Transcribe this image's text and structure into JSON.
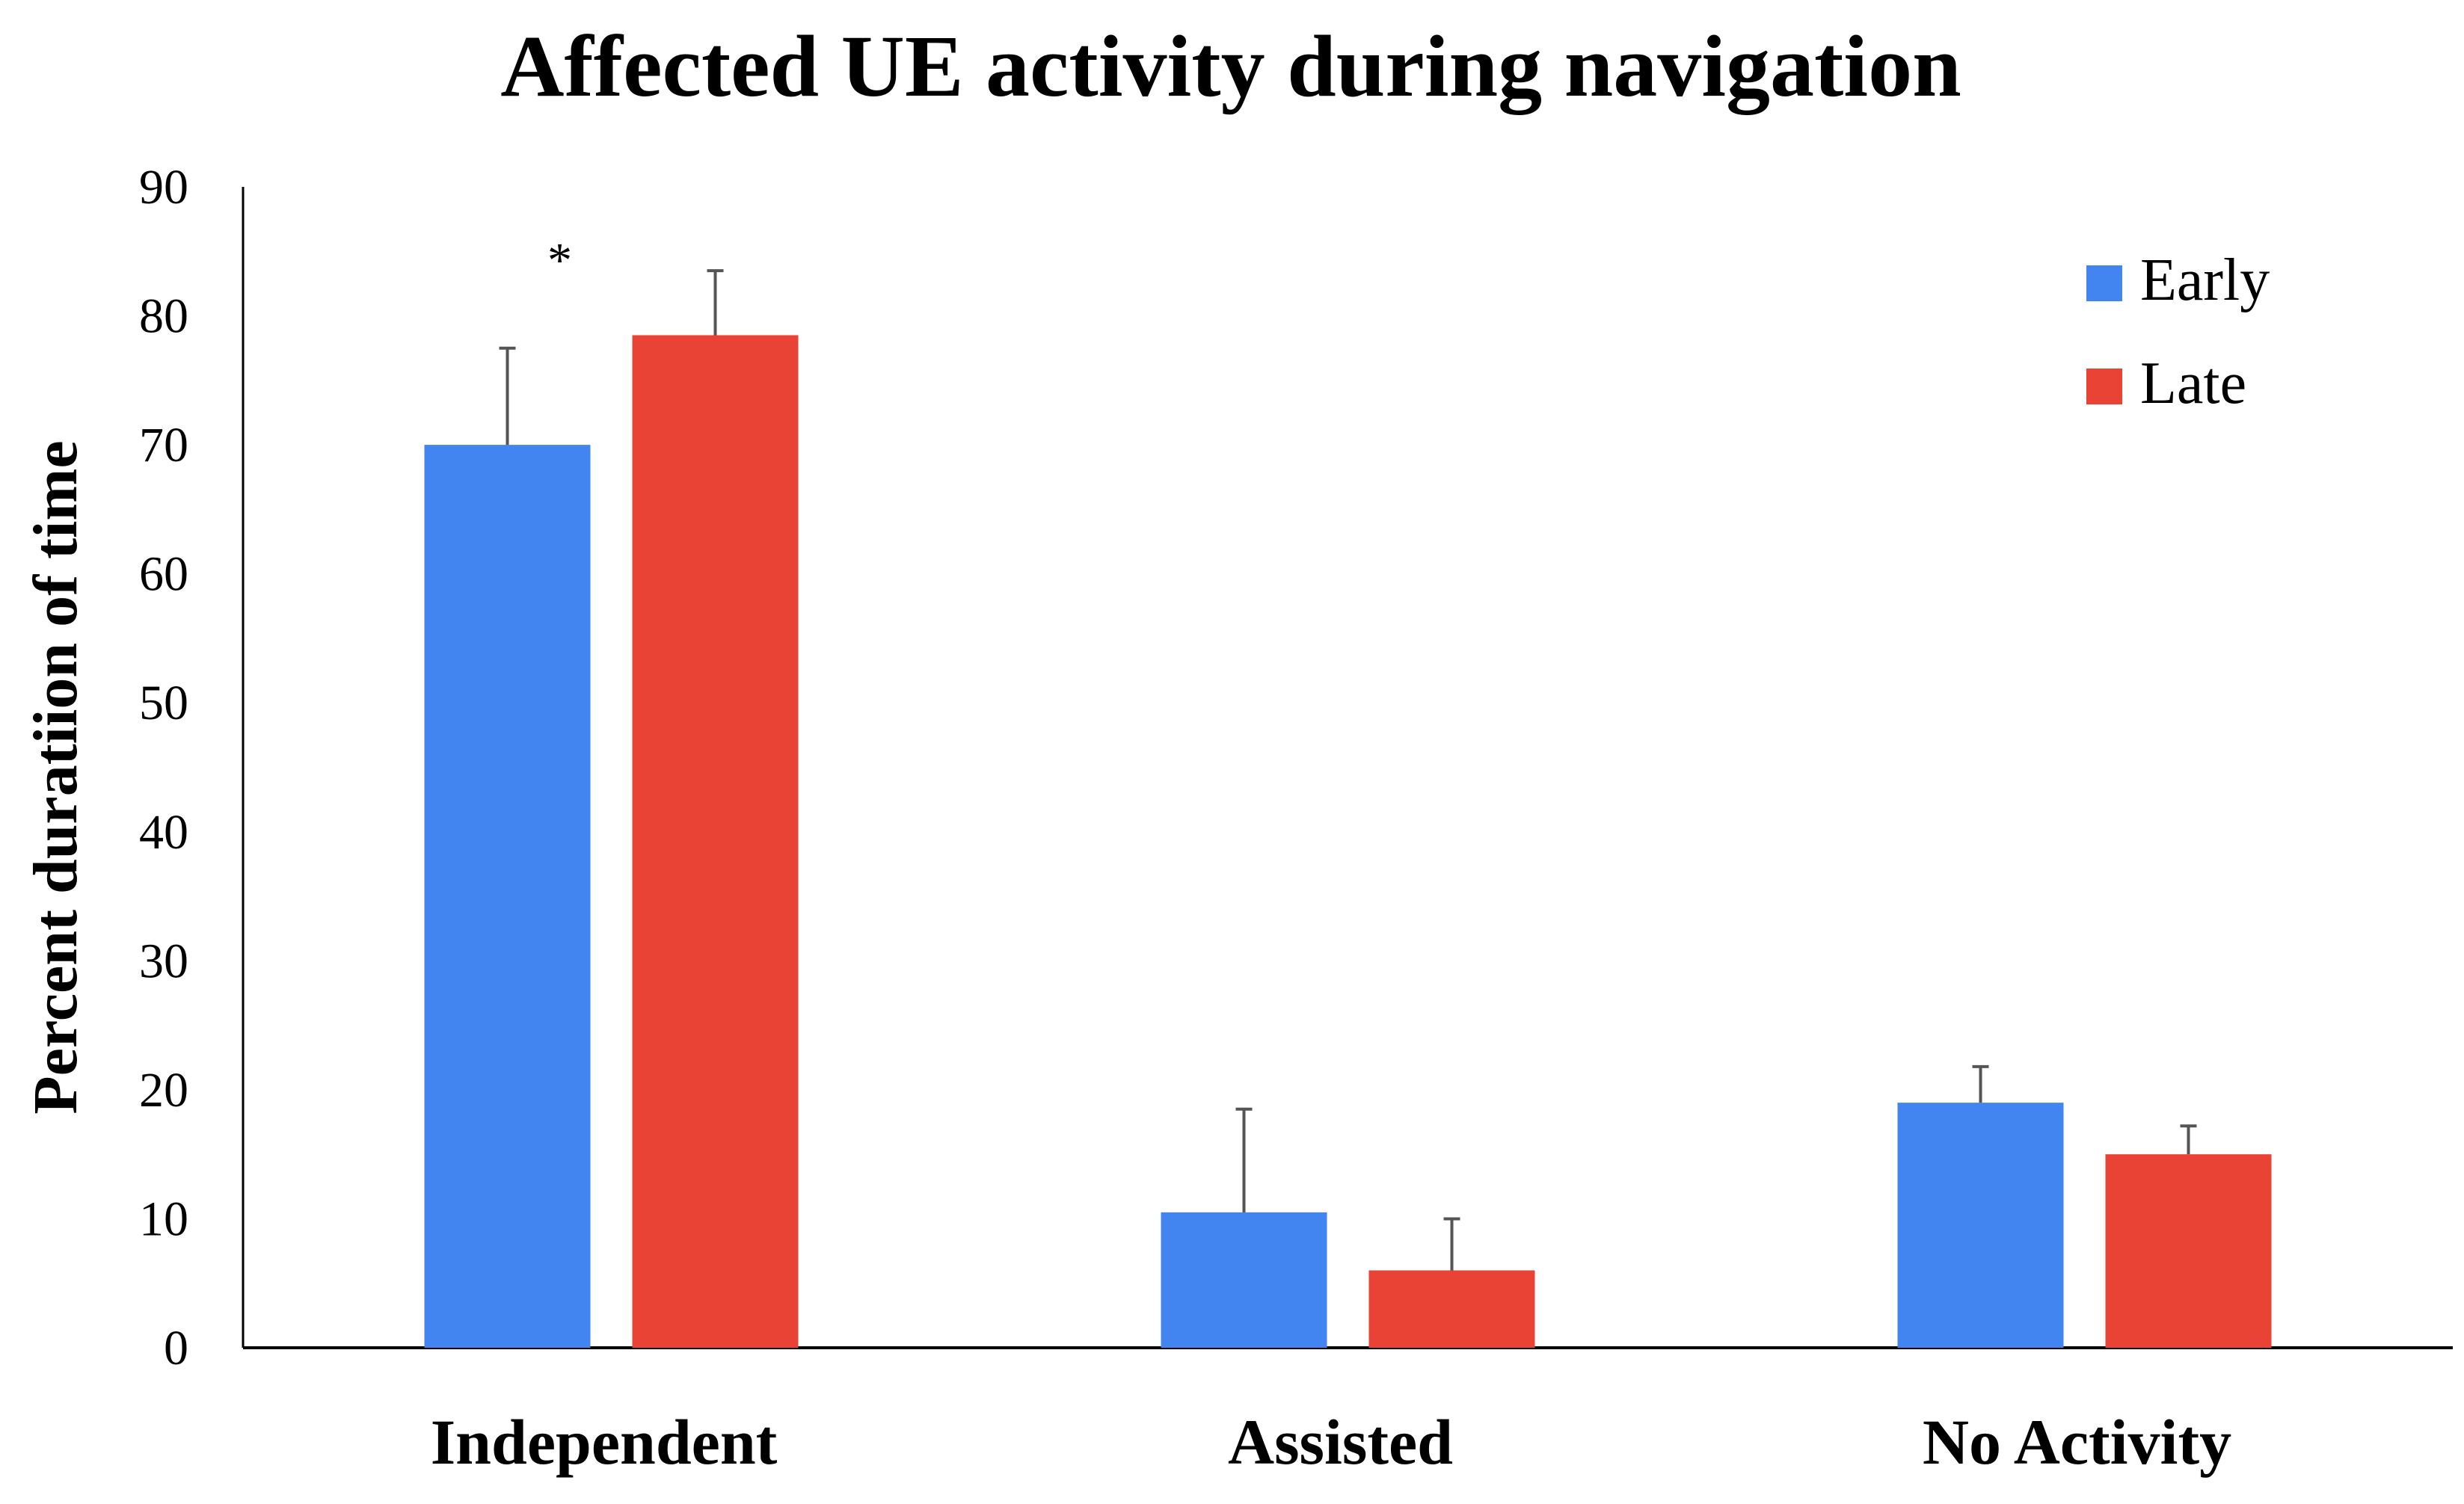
{
  "chart_data": {
    "type": "bar",
    "title": "Affected UE activity during navigation",
    "xlabel": "",
    "ylabel": "Percent duratiion of time",
    "ylim": [
      0,
      90
    ],
    "yticks": [
      0,
      10,
      20,
      30,
      40,
      50,
      60,
      70,
      80,
      90
    ],
    "categories": [
      "Independent",
      "Assisted",
      "No Activity"
    ],
    "series": [
      {
        "name": "Early",
        "color": "#4285F0",
        "values": [
          70,
          10.5,
          19
        ],
        "error": [
          7.5,
          8,
          2.8
        ]
      },
      {
        "name": "Late",
        "color": "#E94335",
        "values": [
          78.5,
          6,
          15
        ],
        "error": [
          5,
          4,
          2.2
        ]
      }
    ],
    "annotations": [
      {
        "text": "*",
        "category": "Independent",
        "series": "Early"
      }
    ],
    "legend": "top-right",
    "grid": false
  }
}
